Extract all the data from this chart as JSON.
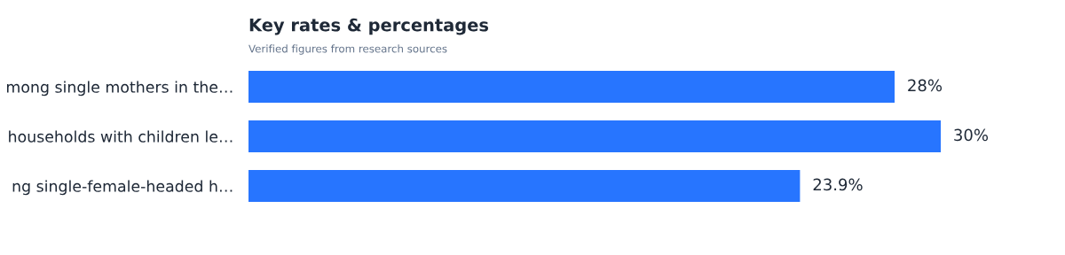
{
  "chart_data": {
    "type": "bar",
    "orientation": "horizontal",
    "title": "Key rates & percentages",
    "subtitle": "Verified figures from research sources",
    "categories": [
      "mong single mothers in the…",
      "households with children le…",
      "ng single-female-headed h…"
    ],
    "values": [
      28,
      30,
      23.9
    ],
    "value_labels": [
      "28%",
      "30%",
      "23.9%"
    ],
    "color": "#2775ff",
    "tick_labels": "y",
    "grid": false,
    "legend": false
  }
}
